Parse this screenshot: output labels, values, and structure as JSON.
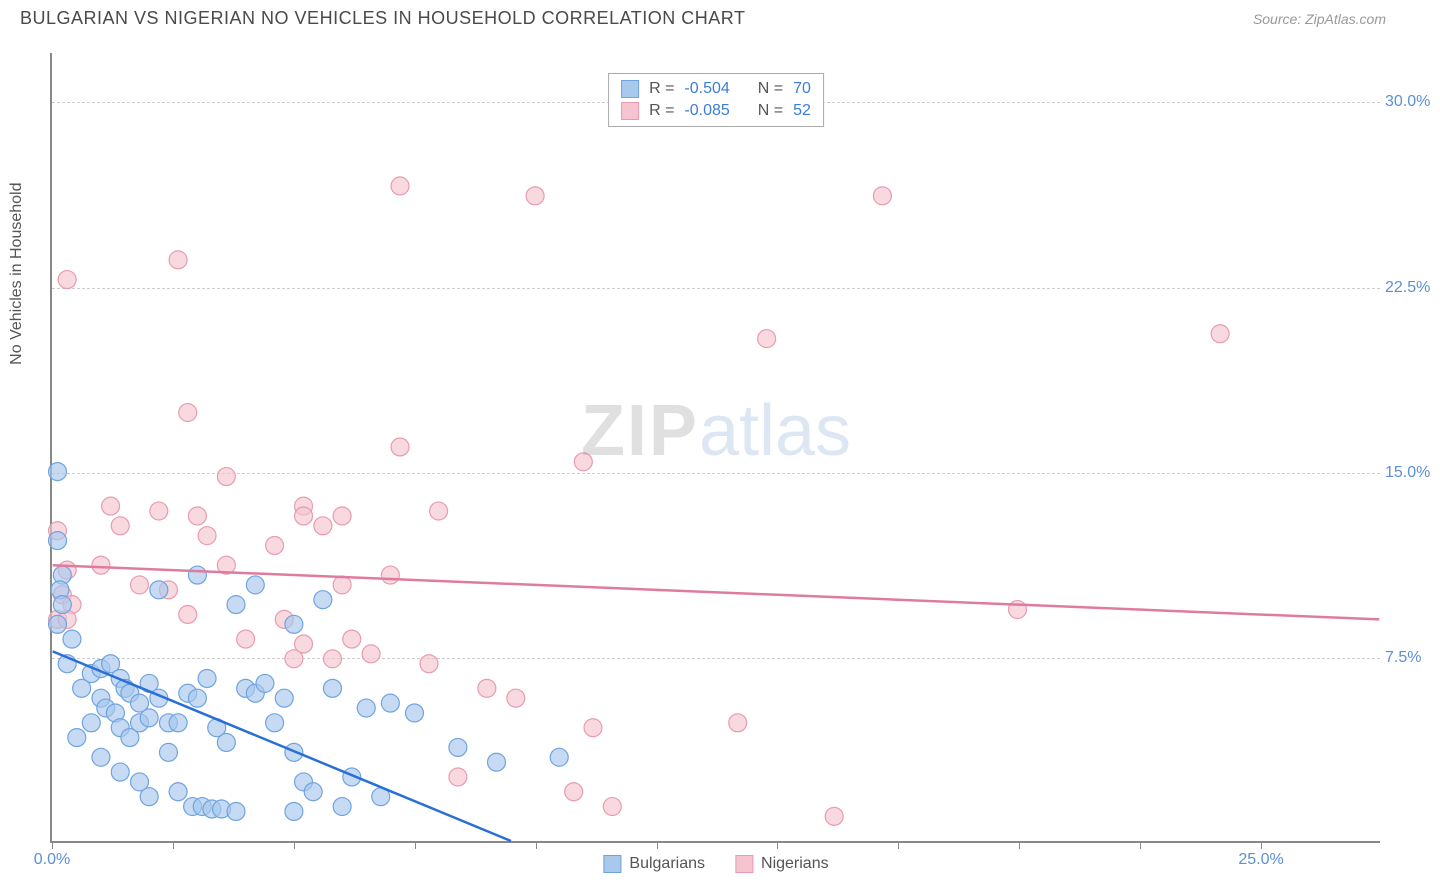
{
  "header": {
    "title": "BULGARIAN VS NIGERIAN NO VEHICLES IN HOUSEHOLD CORRELATION CHART",
    "source_prefix": "Source: ",
    "source": "ZipAtlas.com"
  },
  "watermark": {
    "part1": "ZIP",
    "part2": "atlas"
  },
  "chart": {
    "type": "scatter",
    "y_axis_label": "No Vehicles in Household",
    "xlim": [
      0,
      27.5
    ],
    "ylim": [
      0,
      32
    ],
    "x_ticks": [
      0.0,
      2.5,
      5.0,
      7.5,
      10.0,
      12.5,
      15.0,
      17.5,
      20.0,
      22.5,
      25.0
    ],
    "x_tick_labels": [
      "0.0%",
      "",
      "",
      "",
      "",
      "",
      "",
      "",
      "",
      "",
      "25.0%"
    ],
    "y_ticks": [
      7.5,
      15.0,
      22.5,
      30.0
    ],
    "y_tick_labels": [
      "7.5%",
      "15.0%",
      "22.5%",
      "30.0%"
    ],
    "grid_color": "#cccccc",
    "background_color": "#ffffff",
    "series": [
      {
        "name": "Bulgarians",
        "fill_color": "#a8c8ec",
        "stroke_color": "#6fa3e0",
        "marker_radius": 9,
        "R": "-0.504",
        "N": "70",
        "trend_line": {
          "x1": 0,
          "y1": 7.7,
          "x2": 9.5,
          "y2": 0,
          "color": "#2a6fd6",
          "width": 2.5
        },
        "points": [
          [
            0.1,
            15.0
          ],
          [
            0.1,
            12.2
          ],
          [
            0.2,
            10.8
          ],
          [
            0.15,
            10.2
          ],
          [
            0.2,
            9.6
          ],
          [
            0.1,
            8.8
          ],
          [
            0.4,
            8.2
          ],
          [
            0.3,
            7.2
          ],
          [
            0.8,
            6.8
          ],
          [
            1.0,
            7.0
          ],
          [
            0.6,
            6.2
          ],
          [
            1.2,
            7.2
          ],
          [
            1.4,
            6.6
          ],
          [
            1.5,
            6.2
          ],
          [
            1.0,
            5.8
          ],
          [
            1.1,
            5.4
          ],
          [
            1.3,
            5.2
          ],
          [
            1.6,
            6.0
          ],
          [
            1.8,
            5.6
          ],
          [
            2.0,
            6.4
          ],
          [
            2.2,
            5.8
          ],
          [
            1.4,
            4.6
          ],
          [
            1.6,
            4.2
          ],
          [
            0.8,
            4.8
          ],
          [
            0.5,
            4.2
          ],
          [
            1.0,
            3.4
          ],
          [
            1.8,
            4.8
          ],
          [
            2.0,
            5.0
          ],
          [
            2.4,
            4.8
          ],
          [
            2.6,
            4.8
          ],
          [
            2.8,
            6.0
          ],
          [
            3.0,
            5.8
          ],
          [
            3.2,
            6.6
          ],
          [
            3.4,
            4.6
          ],
          [
            3.6,
            4.0
          ],
          [
            2.4,
            3.6
          ],
          [
            2.6,
            2.0
          ],
          [
            2.9,
            1.4
          ],
          [
            3.1,
            1.4
          ],
          [
            3.3,
            1.3
          ],
          [
            3.5,
            1.3
          ],
          [
            3.8,
            1.2
          ],
          [
            1.4,
            2.8
          ],
          [
            1.8,
            2.4
          ],
          [
            2.0,
            1.8
          ],
          [
            4.0,
            6.2
          ],
          [
            4.2,
            6.0
          ],
          [
            4.4,
            6.4
          ],
          [
            4.6,
            4.8
          ],
          [
            4.8,
            5.8
          ],
          [
            5.0,
            3.6
          ],
          [
            5.0,
            1.2
          ],
          [
            5.2,
            2.4
          ],
          [
            5.4,
            2.0
          ],
          [
            5.8,
            6.2
          ],
          [
            6.0,
            1.4
          ],
          [
            6.2,
            2.6
          ],
          [
            6.5,
            5.4
          ],
          [
            6.8,
            1.8
          ],
          [
            7.0,
            5.6
          ],
          [
            7.5,
            5.2
          ],
          [
            8.4,
            3.8
          ],
          [
            9.2,
            3.2
          ],
          [
            10.5,
            3.4
          ],
          [
            3.8,
            9.6
          ],
          [
            4.2,
            10.4
          ],
          [
            5.6,
            9.8
          ],
          [
            5.0,
            8.8
          ],
          [
            3.0,
            10.8
          ],
          [
            2.2,
            10.2
          ]
        ]
      },
      {
        "name": "Nigerians",
        "fill_color": "#f5c4d0",
        "stroke_color": "#e99bb0",
        "marker_radius": 9,
        "R": "-0.085",
        "N": "52",
        "trend_line": {
          "x1": 0,
          "y1": 11.2,
          "x2": 27.5,
          "y2": 9.0,
          "color": "#e07ba0",
          "width": 2.5
        },
        "points": [
          [
            0.3,
            22.8
          ],
          [
            2.6,
            23.6
          ],
          [
            7.2,
            26.6
          ],
          [
            10.0,
            26.2
          ],
          [
            17.2,
            26.2
          ],
          [
            14.8,
            20.4
          ],
          [
            24.2,
            20.6
          ],
          [
            2.8,
            17.4
          ],
          [
            3.6,
            14.8
          ],
          [
            5.2,
            13.6
          ],
          [
            5.2,
            13.2
          ],
          [
            5.6,
            12.8
          ],
          [
            6.0,
            13.2
          ],
          [
            7.2,
            16.0
          ],
          [
            8.0,
            13.4
          ],
          [
            11.0,
            15.4
          ],
          [
            0.1,
            12.6
          ],
          [
            0.3,
            11.0
          ],
          [
            0.2,
            10.0
          ],
          [
            0.4,
            9.6
          ],
          [
            0.1,
            9.0
          ],
          [
            0.3,
            9.0
          ],
          [
            1.0,
            11.2
          ],
          [
            1.2,
            13.6
          ],
          [
            1.4,
            12.8
          ],
          [
            1.8,
            10.4
          ],
          [
            2.2,
            13.4
          ],
          [
            2.4,
            10.2
          ],
          [
            2.8,
            9.2
          ],
          [
            3.0,
            13.2
          ],
          [
            3.2,
            12.4
          ],
          [
            3.6,
            11.2
          ],
          [
            4.0,
            8.2
          ],
          [
            4.6,
            12.0
          ],
          [
            4.8,
            9.0
          ],
          [
            5.0,
            7.4
          ],
          [
            5.2,
            8.0
          ],
          [
            5.8,
            7.4
          ],
          [
            6.0,
            10.4
          ],
          [
            6.2,
            8.2
          ],
          [
            6.6,
            7.6
          ],
          [
            7.0,
            10.8
          ],
          [
            7.8,
            7.2
          ],
          [
            8.4,
            2.6
          ],
          [
            9.0,
            6.2
          ],
          [
            9.6,
            5.8
          ],
          [
            10.8,
            2.0
          ],
          [
            11.2,
            4.6
          ],
          [
            11.6,
            1.4
          ],
          [
            14.2,
            4.8
          ],
          [
            16.2,
            1.0
          ],
          [
            20.0,
            9.4
          ]
        ]
      }
    ]
  },
  "legend": {
    "R_label": "R =",
    "N_label": "N ="
  }
}
